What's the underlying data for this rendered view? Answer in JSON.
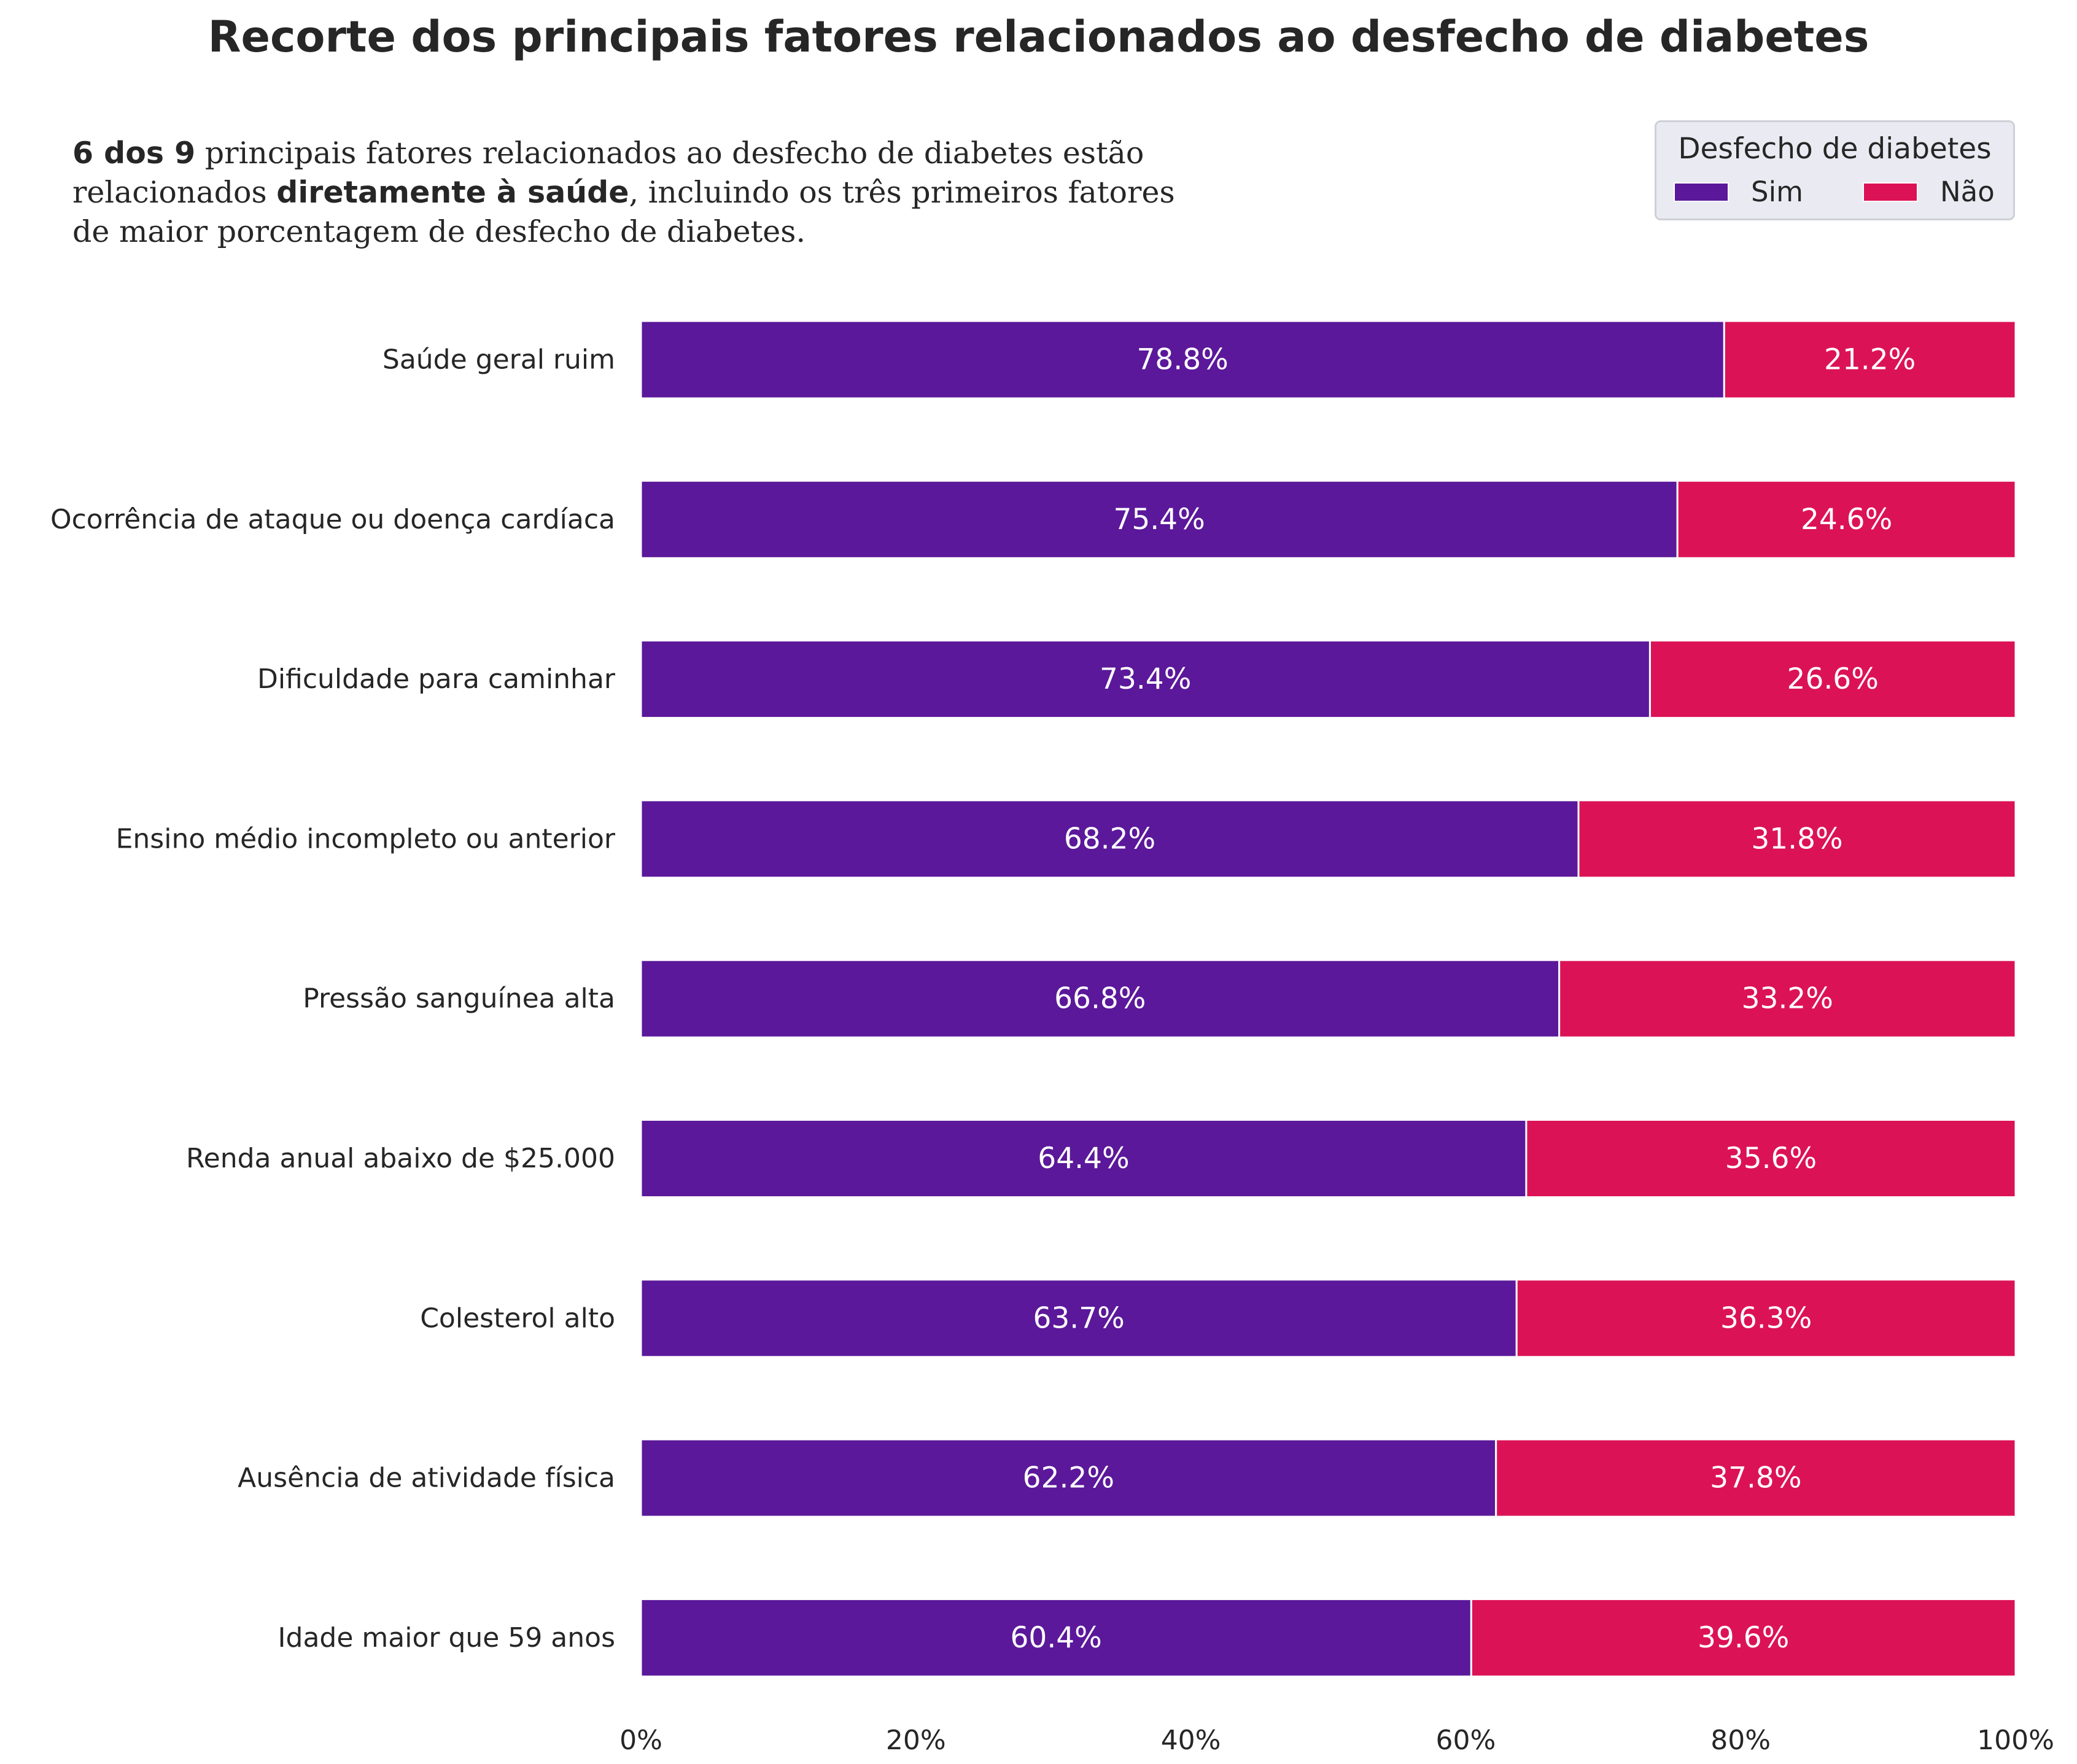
{
  "title": "Recorte dos principais fatores relacionados ao desfecho de diabetes",
  "subtitle": {
    "line1_bold": "6 dos 9",
    "line1_rest": " principais fatores relacionados ao desfecho de diabetes estão",
    "line2_start": "relacionados ",
    "line2_bold": "diretamente à saúde",
    "line2_rest": ", incluindo os três primeiros fatores",
    "line3": "de maior porcentagem de desfecho de diabetes."
  },
  "legend": {
    "title": "Desfecho de diabetes",
    "placement": "top-right"
  },
  "colors": {
    "sim": "#5b189a",
    "nao": "#dc1257",
    "bar_label": "#ffffff",
    "text": "#262626"
  },
  "chart_data": {
    "type": "bar",
    "orientation": "horizontal",
    "stacked": true,
    "title": "Recorte dos principais fatores relacionados ao desfecho de diabetes",
    "categories": [
      "Saúde geral ruim",
      "Ocorrência de ataque ou doença cardíaca",
      "Dificuldade para caminhar",
      "Ensino médio incompleto ou anterior",
      "Pressão sanguínea alta",
      "Renda anual abaixo de $25.000",
      "Colesterol alto",
      "Ausência de atividade física",
      "Idade maior que 59 anos"
    ],
    "series": [
      {
        "name": "Sim",
        "values": [
          78.8,
          75.4,
          73.4,
          68.2,
          66.8,
          64.4,
          63.7,
          62.2,
          60.4
        ],
        "labels": [
          "78.8%",
          "75.4%",
          "73.4%",
          "68.2%",
          "66.8%",
          "64.4%",
          "63.7%",
          "62.2%",
          "60.4%"
        ]
      },
      {
        "name": "Não",
        "values": [
          21.2,
          24.6,
          26.6,
          31.8,
          33.2,
          35.6,
          36.3,
          37.8,
          39.6
        ],
        "labels": [
          "21.2%",
          "24.6%",
          "26.6%",
          "31.8%",
          "33.2%",
          "35.6%",
          "36.3%",
          "37.8%",
          "39.6%"
        ]
      }
    ],
    "xlim": [
      0,
      100
    ],
    "xticks": [
      0,
      20,
      40,
      60,
      80,
      100
    ],
    "xtick_labels": [
      "0%",
      "20%",
      "40%",
      "60%",
      "80%",
      "100%"
    ],
    "xlabel": "",
    "ylabel": "",
    "grid": false,
    "legend_placement": "top-right"
  }
}
